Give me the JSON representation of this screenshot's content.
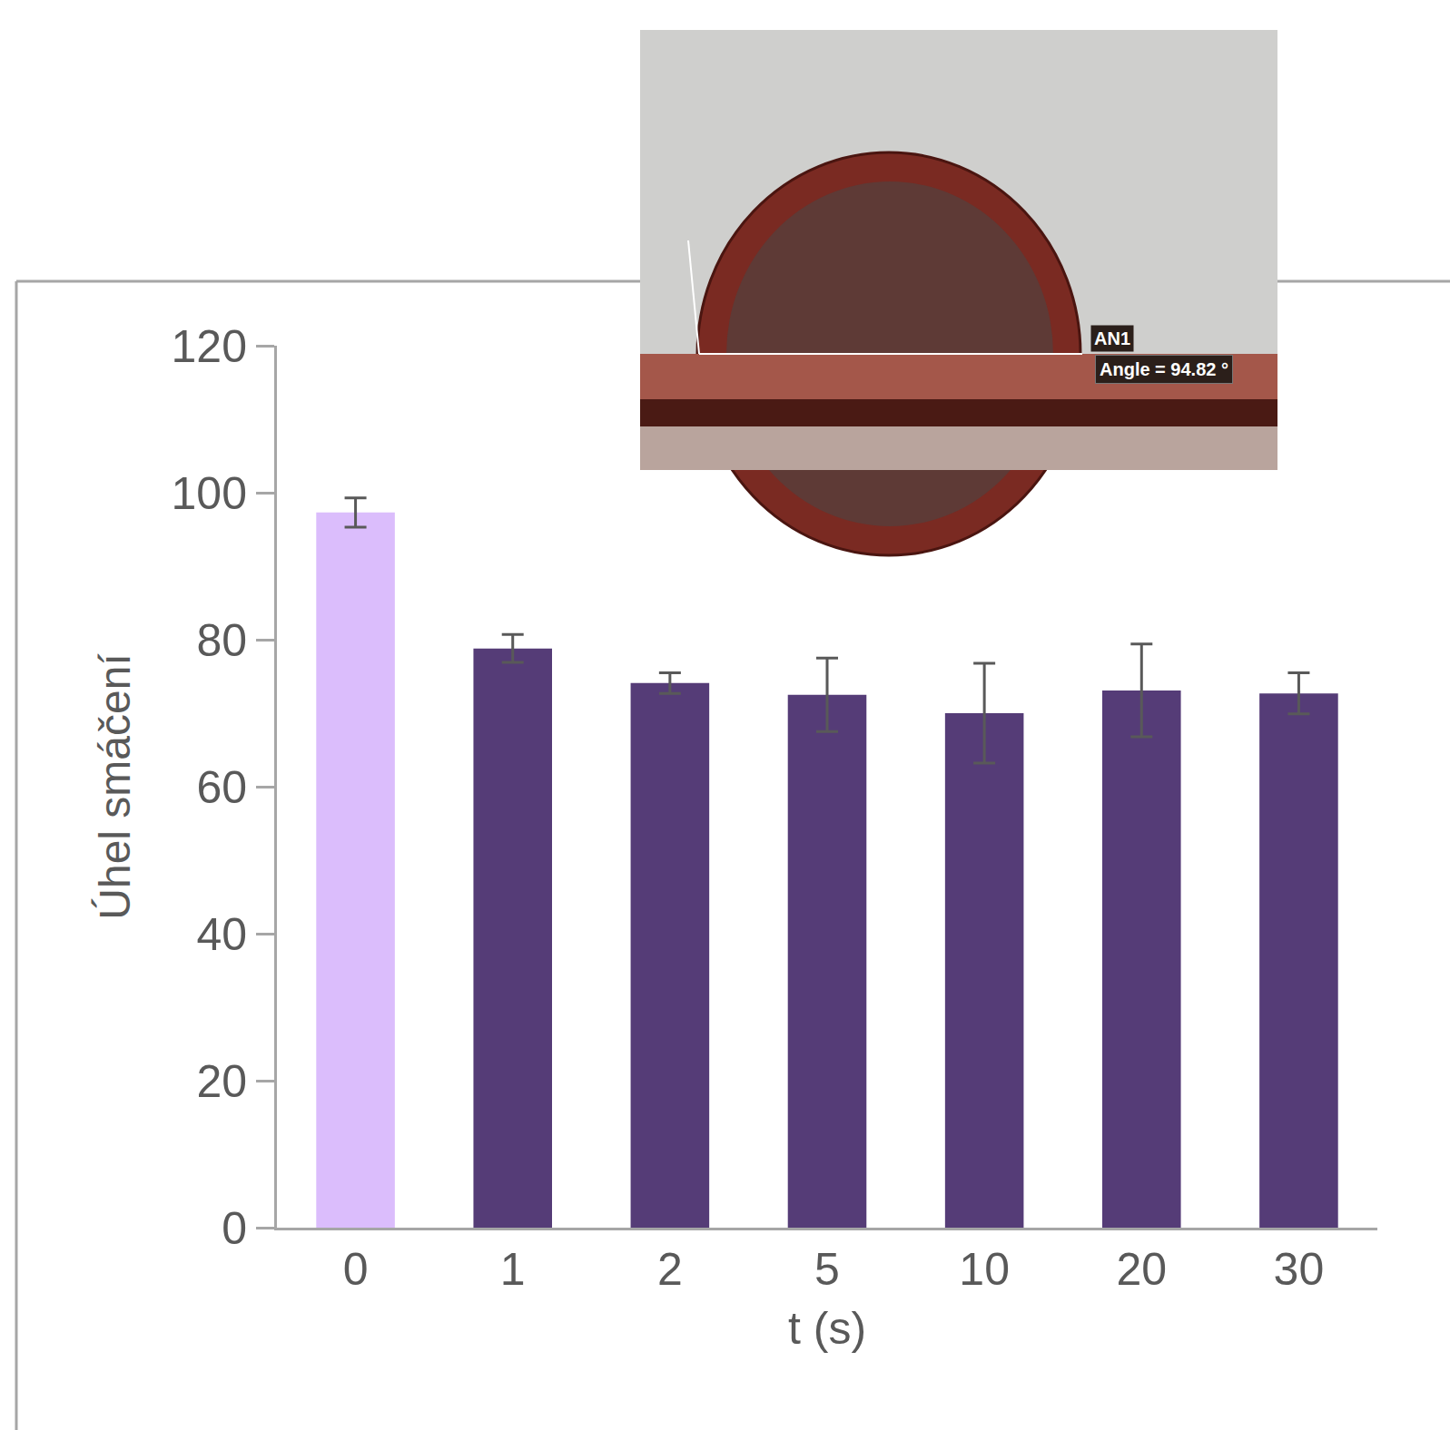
{
  "chart_data": {
    "type": "bar",
    "x_label": "t (s)",
    "y_label": "Úhel smáčení",
    "categories": [
      "0",
      "1",
      "2",
      "5",
      "10",
      "20",
      "30"
    ],
    "values": [
      97.3,
      78.8,
      74.1,
      72.5,
      70.0,
      73.1,
      72.7
    ],
    "error": [
      2.0,
      1.9,
      1.4,
      5.0,
      6.8,
      6.3,
      2.8
    ],
    "colors": [
      "#dbbdfc",
      "#553c77",
      "#553c77",
      "#553c77",
      "#553c77",
      "#553c77",
      "#553c77"
    ],
    "ylim": [
      0,
      120
    ],
    "yticks": [
      0,
      20,
      40,
      60,
      80,
      100,
      120
    ],
    "grid": false,
    "annotations": [
      "AN1",
      "Angle = 94.82 °"
    ]
  }
}
